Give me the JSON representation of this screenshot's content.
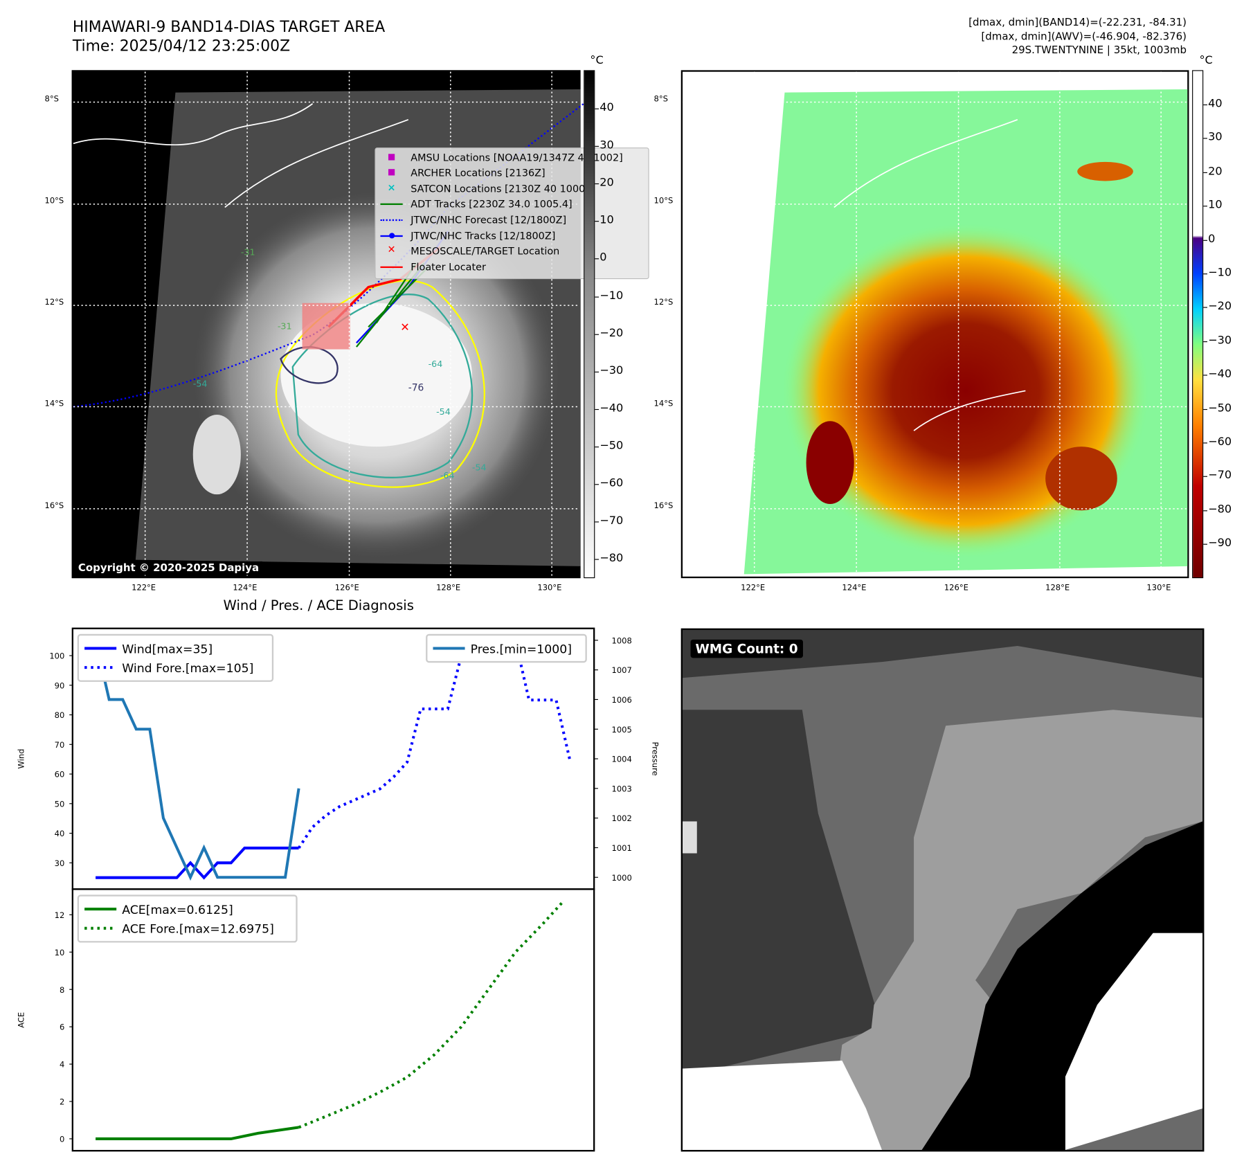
{
  "header": {
    "title": "HIMAWARI-9 BAND14-DIAS TARGET AREA",
    "time": "Time: 2025/04/12 23:25:00Z",
    "right_lines": [
      "[dmax, dmin](BAND14)=(-22.231, -84.31)",
      "[dmax, dmin](AWV)=(-46.904, -82.376)",
      "29S.TWENTYNINE | 35kt, 1003mb"
    ]
  },
  "maps": {
    "lat_labels": [
      "8°S",
      "10°S",
      "12°S",
      "14°S",
      "16°S"
    ],
    "lon_labels": [
      "122°E",
      "124°E",
      "126°E",
      "128°E",
      "130°E"
    ],
    "unit": "°C",
    "left_cbar_ticks": [
      "40",
      "30",
      "20",
      "10",
      "0",
      "−10",
      "−20",
      "−30",
      "−40",
      "−50",
      "−60",
      "−70",
      "−80"
    ],
    "right_cbar_ticks": [
      "40",
      "30",
      "20",
      "10",
      "0",
      "−10",
      "−20",
      "−30",
      "−40",
      "−50",
      "−60",
      "−70",
      "−80",
      "−90"
    ],
    "copyright": "Copyright © 2020-2025 Dapiya",
    "contour_labels": [
      "-31",
      "-31",
      "-54",
      "-64",
      "-76",
      "-54",
      "-64",
      "-54"
    ],
    "legend": [
      "AMSU Locations [NOAA19/1347Z 44 1002]",
      "ARCHER Locations [2136Z]",
      "SATCON Locations [2130Z 40 1000]",
      "ADT Tracks [2230Z 34.0 1005.4]",
      "JTWC/NHC Forecast [12/1800Z]",
      "JTWC/NHC Tracks [12/1800Z]",
      "MESOSCALE/TARGET Location",
      "Floater Locater"
    ],
    "colors": {
      "amsu": "#c000c0",
      "archer": "#c000c0",
      "satcon": "#00c0c0",
      "adt": "#008000",
      "forecast": "#0000ff",
      "tracks": "#0000ff",
      "target": "#ff0000",
      "floater": "#ff0000"
    }
  },
  "wmg": {
    "label": "WMG Count: 0"
  },
  "chart_data": [
    {
      "type": "line",
      "title": "Wind / Pres. / ACE Diagnosis",
      "ylabel": "Wind",
      "y2label": "Pressure",
      "xlim": [
        -1.7,
        36.8
      ],
      "ylim": [
        21.1,
        109.2
      ],
      "y2lim": [
        999.6,
        1008.4
      ],
      "yticks": [
        30,
        40,
        50,
        60,
        70,
        80,
        90,
        100
      ],
      "y2ticks": [
        1000,
        1001,
        1002,
        1003,
        1004,
        1005,
        1006,
        1007,
        1008
      ],
      "series": [
        {
          "name": "Wind[max=35]",
          "color": "#0000ff",
          "style": "solid",
          "x": [
            0,
            1,
            2,
            3,
            4,
            5,
            6,
            7,
            8,
            9,
            10,
            11,
            12,
            13,
            14,
            15
          ],
          "values": [
            25,
            25,
            25,
            25,
            25,
            25,
            25,
            30,
            25,
            30,
            30,
            35,
            35,
            35,
            35,
            35
          ]
        },
        {
          "name": "Wind Fore.[max=105]",
          "color": "#0000ff",
          "style": "dotted",
          "x": [
            15,
            16,
            17,
            18,
            19,
            20,
            21,
            22,
            23,
            24,
            25,
            26,
            27,
            28,
            29,
            30,
            31,
            32,
            33,
            34,
            35
          ],
          "values": [
            35,
            42,
            46,
            49,
            51,
            53,
            55,
            59,
            64,
            82,
            82,
            82,
            100,
            105,
            105,
            105,
            105,
            85,
            85,
            85,
            65
          ]
        },
        {
          "name": "Pres.[min=1000]",
          "color": "#1f77b4",
          "style": "solid",
          "axis": "y2",
          "x": [
            0,
            1,
            2,
            3,
            4,
            5,
            6,
            7,
            8,
            9,
            10,
            11,
            12,
            13,
            14,
            15
          ],
          "values": [
            1008,
            1006,
            1006,
            1005,
            1005,
            1002,
            1001,
            1000,
            1001,
            1000,
            1000,
            1000,
            1000,
            1000,
            1000,
            1003
          ]
        }
      ]
    },
    {
      "type": "line",
      "ylabel": "ACE",
      "xlim": [
        -1.7,
        36.8
      ],
      "ylim": [
        -0.64,
        13.37
      ],
      "yticks": [
        0,
        2,
        4,
        6,
        8,
        10,
        12
      ],
      "series": [
        {
          "name": "ACE[max=0.6125]",
          "color": "#008000",
          "style": "solid",
          "x": [
            0,
            2,
            4,
            6,
            8,
            10,
            12,
            15
          ],
          "values": [
            0,
            0,
            0,
            0,
            0,
            0,
            0.3,
            0.6125
          ]
        },
        {
          "name": "ACE Fore.[max=12.6975]",
          "color": "#008000",
          "style": "dotted",
          "x": [
            15,
            17,
            19,
            21,
            23,
            25,
            27,
            29,
            31,
            33,
            34.5
          ],
          "values": [
            0.6125,
            1.2,
            1.8,
            2.5,
            3.3,
            4.5,
            6,
            8,
            10,
            11.5,
            12.6975
          ]
        }
      ]
    }
  ]
}
